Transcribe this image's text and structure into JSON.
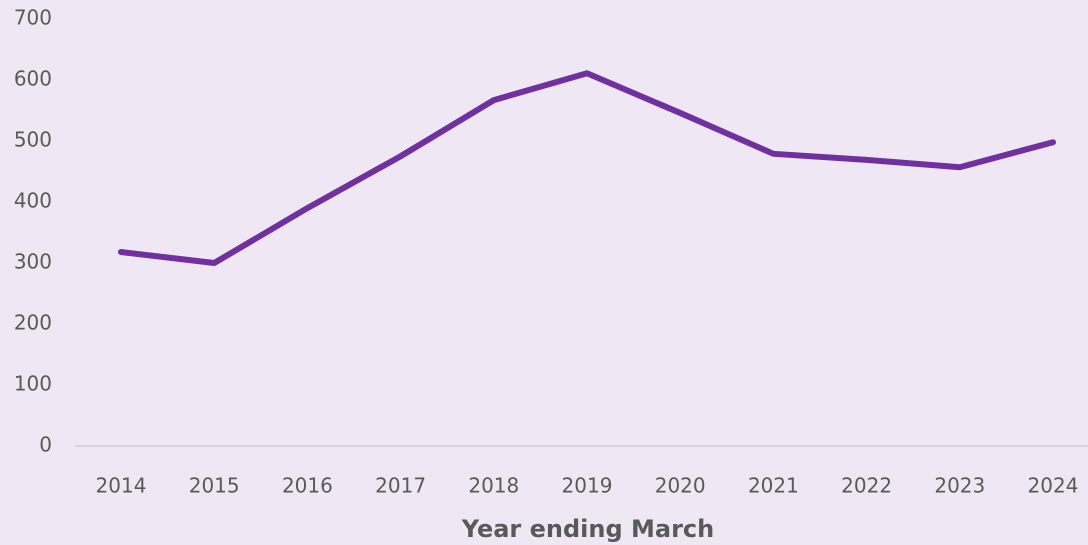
{
  "chart_data": {
    "type": "line",
    "x_label": "Year ending March",
    "categories": [
      "2014",
      "2015",
      "2016",
      "2017",
      "2018",
      "2019",
      "2020",
      "2021",
      "2022",
      "2023",
      "2024"
    ],
    "series": [
      {
        "color": "#7030a0",
        "values": [
          318,
          300,
          390,
          475,
          567,
          611,
          546,
          479,
          469,
          457,
          498
        ]
      }
    ],
    "ylim": [
      0,
      700
    ],
    "yticks": [
      0,
      100,
      200,
      300,
      400,
      500,
      600,
      700
    ],
    "grid": false
  }
}
